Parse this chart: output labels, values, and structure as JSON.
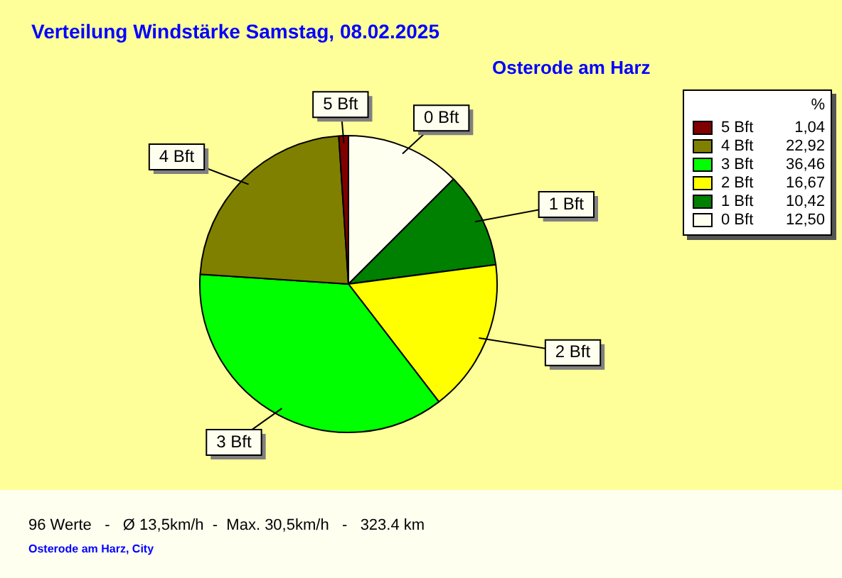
{
  "chart_data": {
    "type": "pie",
    "title": "Verteilung Windstärke  Samstag, 08.02.2025",
    "subtitle": "Osterode am Harz",
    "categories": [
      "0 Bft",
      "1 Bft",
      "2 Bft",
      "3 Bft",
      "4 Bft",
      "5 Bft"
    ],
    "values": [
      12.5,
      10.42,
      16.67,
      36.46,
      22.92,
      1.04
    ],
    "value_labels": [
      "12,50",
      "10,42",
      "16,67",
      "36,46",
      "22,92",
      "1,04"
    ],
    "colors": [
      "#fffff0",
      "#008000",
      "#ffff00",
      "#00ff00",
      "#808000",
      "#800000"
    ],
    "legend": "top right",
    "legend_title": "%",
    "annotations": [
      "96 Werte   -   Ø 13,5km/h  -  Max. 30,5km/h   -   323.4 km",
      "Osterode am Harz, City"
    ]
  }
}
